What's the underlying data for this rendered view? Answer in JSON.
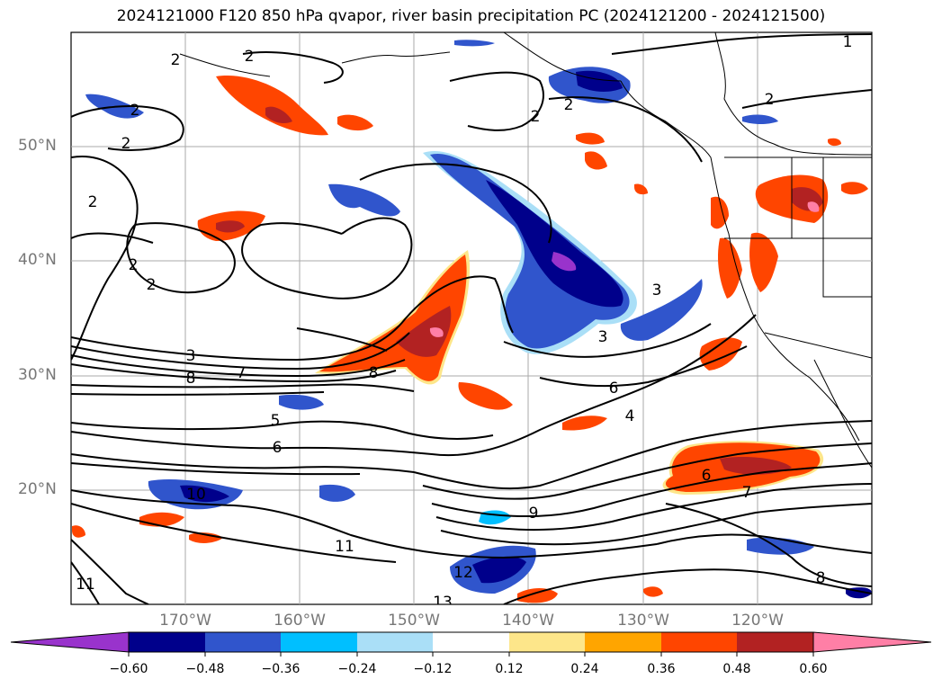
{
  "title": "2024121000 F120 850 hPa qvapor, river basin precipitation PC (2024121200 - 2024121500)",
  "map": {
    "lat_labels": [
      "50°N",
      "40°N",
      "30°N",
      "20°N"
    ],
    "lon_labels": [
      "170°W",
      "160°W",
      "150°W",
      "140°W",
      "130°W",
      "120°W"
    ],
    "contour_labels": [
      "1",
      "2",
      "2",
      "2",
      "2",
      "2",
      "2",
      "2",
      "2",
      "2",
      "2",
      "3",
      "3",
      "3",
      "4",
      "5",
      "6",
      "6",
      "6",
      "7",
      "7",
      "8",
      "8",
      "8",
      "9",
      "10",
      "11",
      "11",
      "12",
      "13"
    ]
  },
  "colorbar": {
    "ticks": [
      "−0.60",
      "−0.48",
      "−0.36",
      "−0.24",
      "−0.12",
      "0.12",
      "0.24",
      "0.36",
      "0.48",
      "0.60"
    ],
    "colors": [
      "#9933cc",
      "#00008b",
      "#3055cc",
      "#00bfff",
      "#aadff7",
      "#ffffff",
      "#fde68a",
      "#ffa500",
      "#ff4500",
      "#b22222",
      "#ff7fa6"
    ]
  }
}
